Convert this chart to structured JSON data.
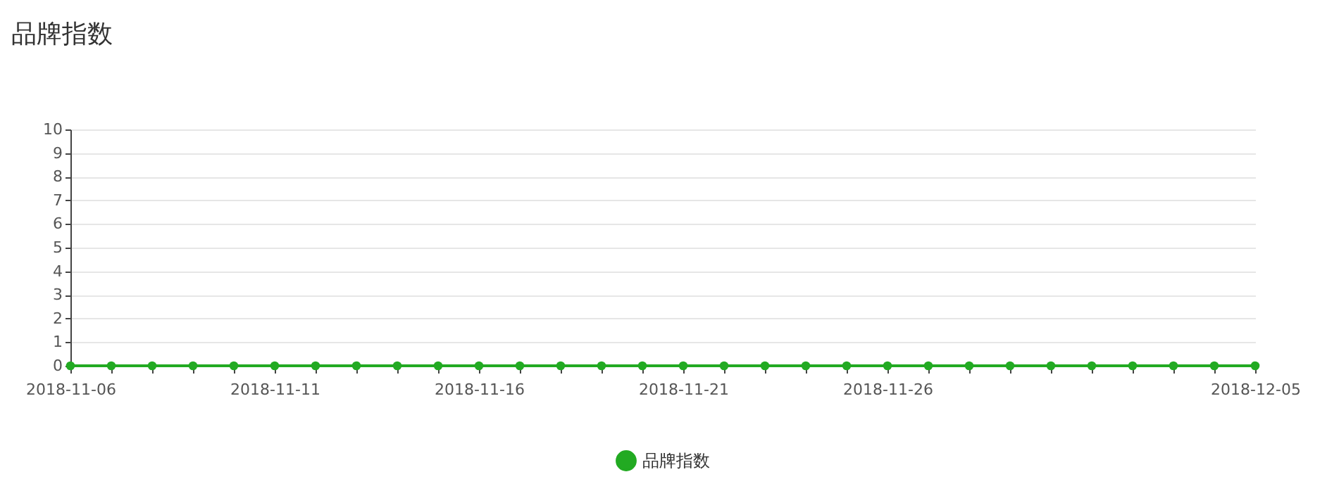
{
  "chart_data": {
    "type": "line",
    "title": "品牌指数",
    "categories": [
      "2018-11-06",
      null,
      null,
      null,
      null,
      "2018-11-11",
      null,
      null,
      null,
      null,
      "2018-11-16",
      null,
      null,
      null,
      null,
      "2018-11-21",
      null,
      null,
      null,
      null,
      "2018-11-26",
      null,
      null,
      null,
      null,
      null,
      null,
      null,
      null,
      "2018-12-05"
    ],
    "series": [
      {
        "name": "品牌指数",
        "color": "#22aa22",
        "values": [
          0,
          0,
          0,
          0,
          0,
          0,
          0,
          0,
          0,
          0,
          0,
          0,
          0,
          0,
          0,
          0,
          0,
          0,
          0,
          0,
          0,
          0,
          0,
          0,
          0,
          0,
          0,
          0,
          0,
          0
        ]
      }
    ],
    "ylim": [
      0,
      10
    ],
    "yticks": [
      0,
      1,
      2,
      3,
      4,
      5,
      6,
      7,
      8,
      9,
      10
    ],
    "grid": "y",
    "legend": "bottom",
    "marker": "circle",
    "line_style": "solid"
  }
}
